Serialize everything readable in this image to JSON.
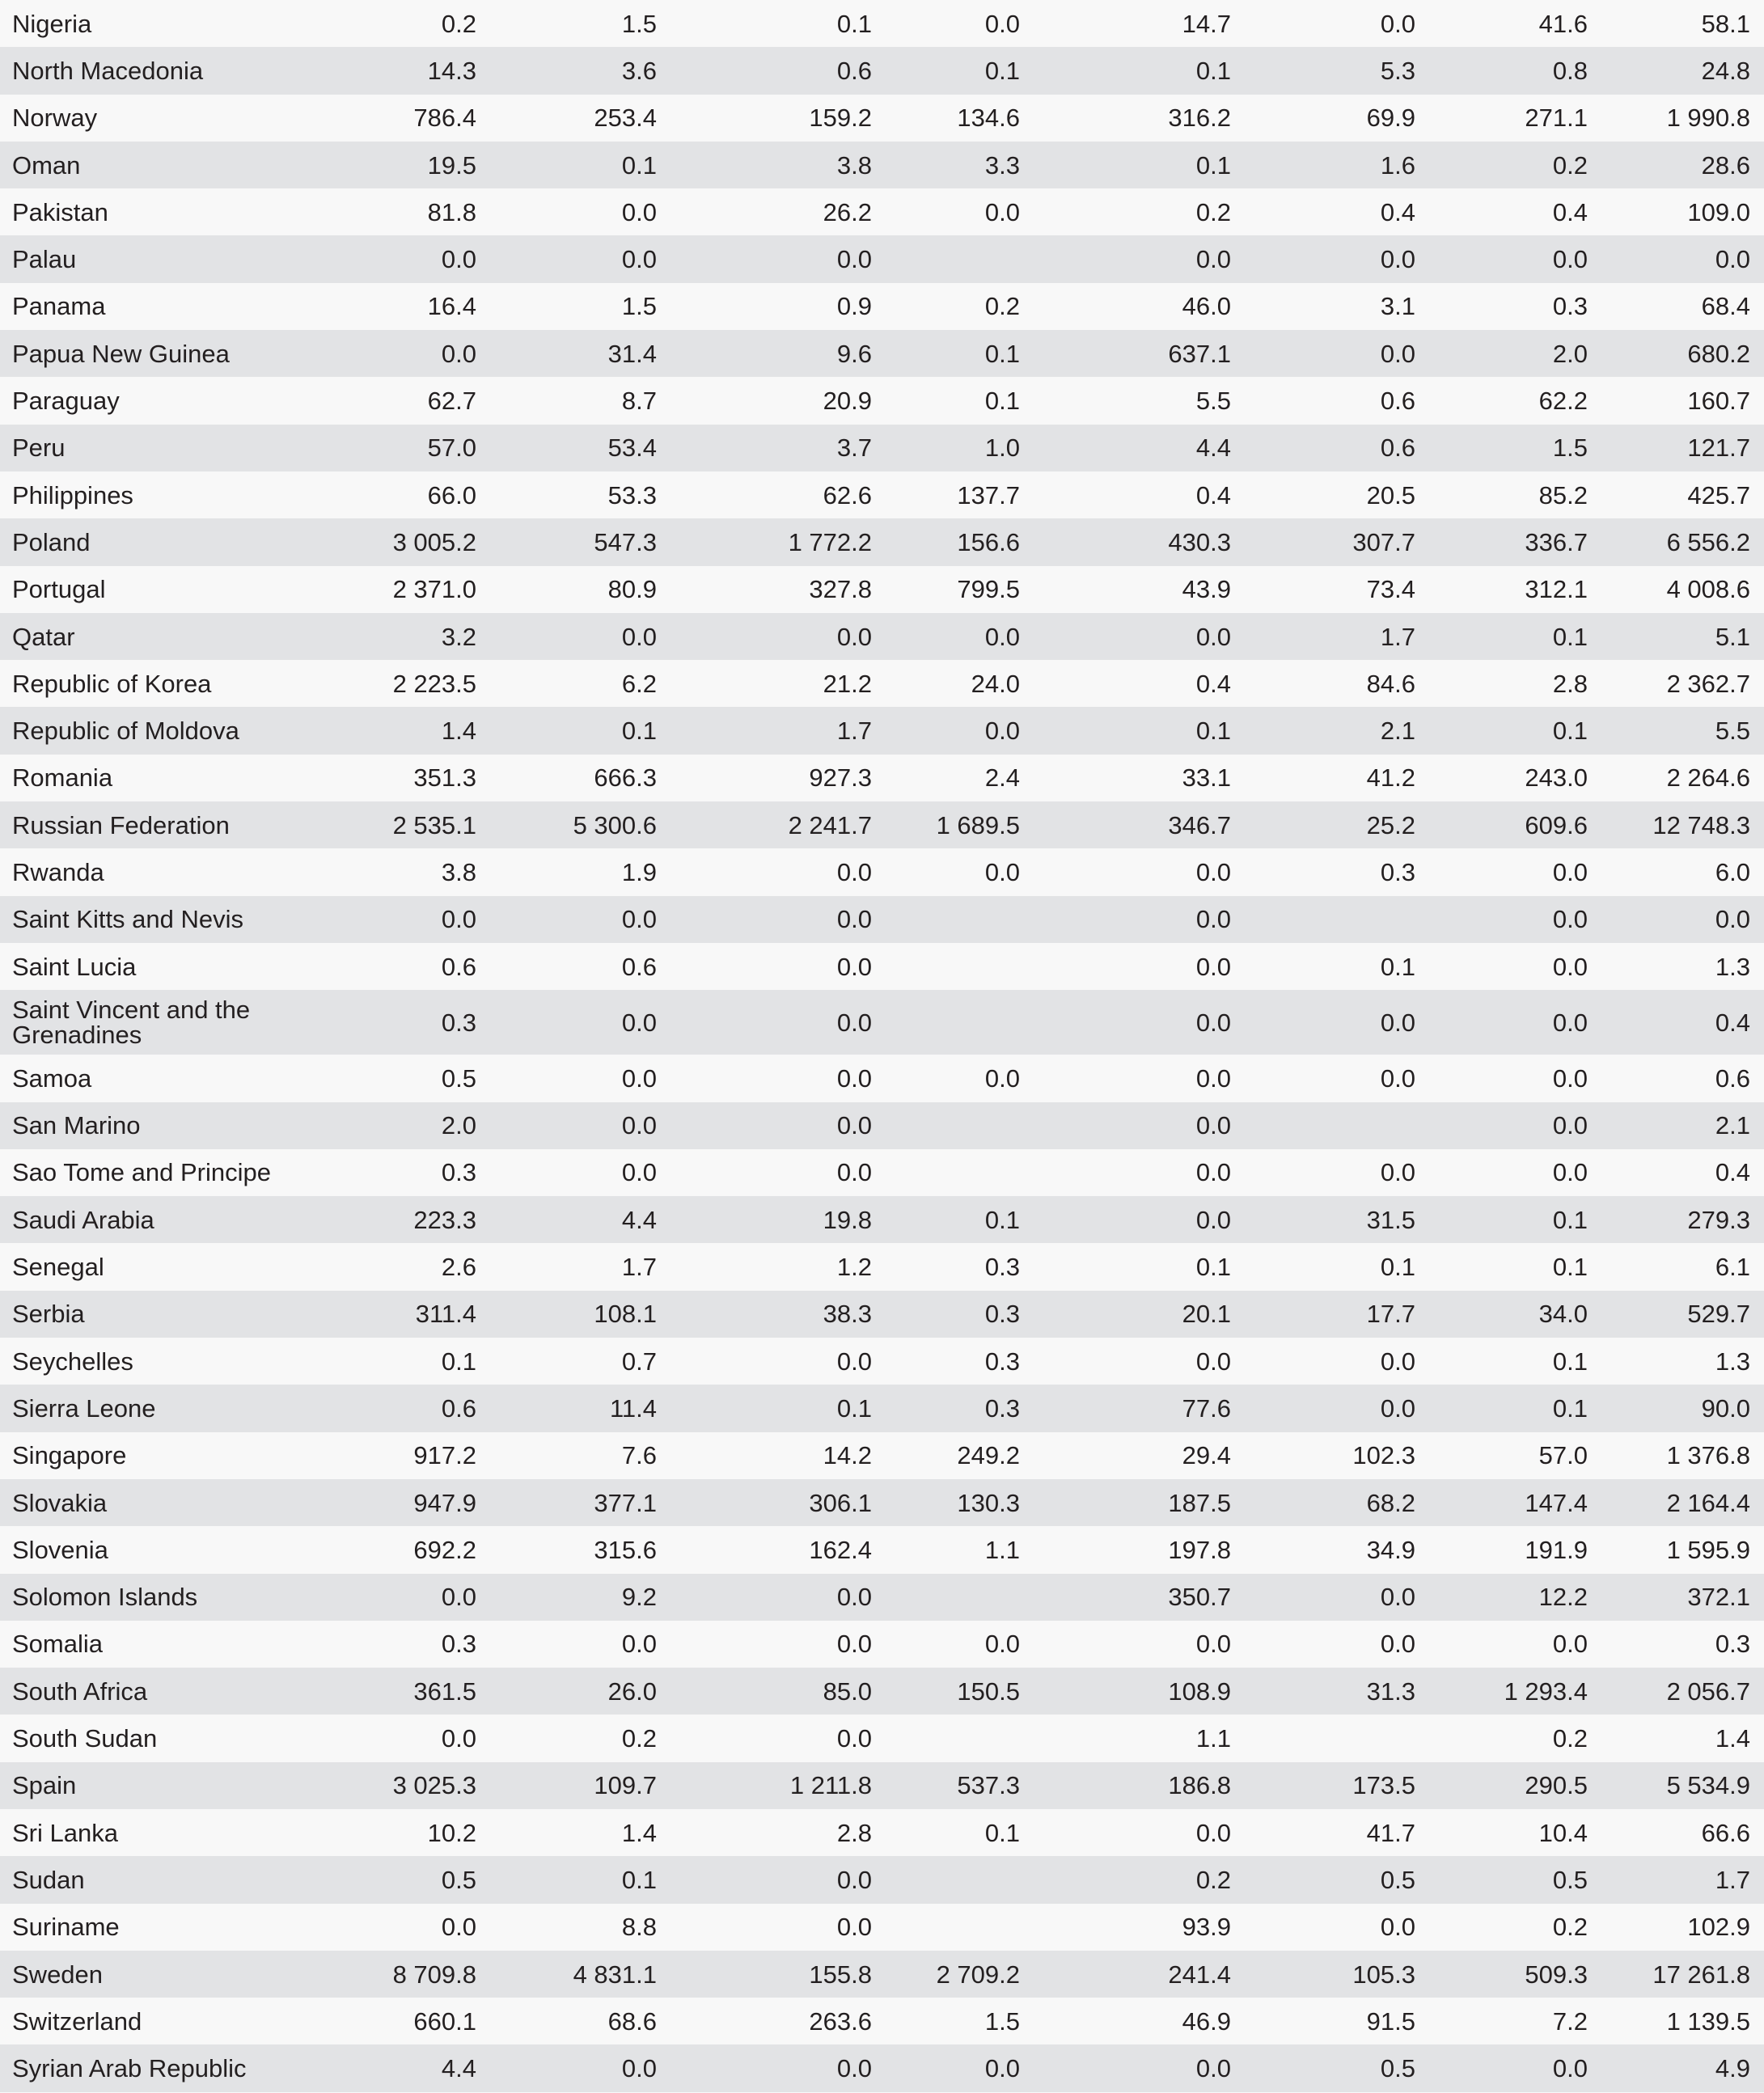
{
  "table": {
    "rows": [
      [
        "Nigeria",
        "0.2",
        "1.5",
        "0.1",
        "0.0",
        "14.7",
        "0.0",
        "41.6",
        "58.1"
      ],
      [
        "North Macedonia",
        "14.3",
        "3.6",
        "0.6",
        "0.1",
        "0.1",
        "5.3",
        "0.8",
        "24.8"
      ],
      [
        "Norway",
        "786.4",
        "253.4",
        "159.2",
        "134.6",
        "316.2",
        "69.9",
        "271.1",
        "1 990.8"
      ],
      [
        "Oman",
        "19.5",
        "0.1",
        "3.8",
        "3.3",
        "0.1",
        "1.6",
        "0.2",
        "28.6"
      ],
      [
        "Pakistan",
        "81.8",
        "0.0",
        "26.2",
        "0.0",
        "0.2",
        "0.4",
        "0.4",
        "109.0"
      ],
      [
        "Palau",
        "0.0",
        "0.0",
        "0.0",
        "",
        "0.0",
        "0.0",
        "0.0",
        "0.0"
      ],
      [
        "Panama",
        "16.4",
        "1.5",
        "0.9",
        "0.2",
        "46.0",
        "3.1",
        "0.3",
        "68.4"
      ],
      [
        "Papua New Guinea",
        "0.0",
        "31.4",
        "9.6",
        "0.1",
        "637.1",
        "0.0",
        "2.0",
        "680.2"
      ],
      [
        "Paraguay",
        "62.7",
        "8.7",
        "20.9",
        "0.1",
        "5.5",
        "0.6",
        "62.2",
        "160.7"
      ],
      [
        "Peru",
        "57.0",
        "53.4",
        "3.7",
        "1.0",
        "4.4",
        "0.6",
        "1.5",
        "121.7"
      ],
      [
        "Philippines",
        "66.0",
        "53.3",
        "62.6",
        "137.7",
        "0.4",
        "20.5",
        "85.2",
        "425.7"
      ],
      [
        "Poland",
        "3 005.2",
        "547.3",
        "1 772.2",
        "156.6",
        "430.3",
        "307.7",
        "336.7",
        "6 556.2"
      ],
      [
        "Portugal",
        "2 371.0",
        "80.9",
        "327.8",
        "799.5",
        "43.9",
        "73.4",
        "312.1",
        "4 008.6"
      ],
      [
        "Qatar",
        "3.2",
        "0.0",
        "0.0",
        "0.0",
        "0.0",
        "1.7",
        "0.1",
        "5.1"
      ],
      [
        "Republic of Korea",
        "2 223.5",
        "6.2",
        "21.2",
        "24.0",
        "0.4",
        "84.6",
        "2.8",
        "2 362.7"
      ],
      [
        "Republic of Moldova",
        "1.4",
        "0.1",
        "1.7",
        "0.0",
        "0.1",
        "2.1",
        "0.1",
        "5.5"
      ],
      [
        "Romania",
        "351.3",
        "666.3",
        "927.3",
        "2.4",
        "33.1",
        "41.2",
        "243.0",
        "2 264.6"
      ],
      [
        "Russian Federation",
        "2 535.1",
        "5 300.6",
        "2 241.7",
        "1 689.5",
        "346.7",
        "25.2",
        "609.6",
        "12 748.3"
      ],
      [
        "Rwanda",
        "3.8",
        "1.9",
        "0.0",
        "0.0",
        "0.0",
        "0.3",
        "0.0",
        "6.0"
      ],
      [
        "Saint Kitts and Nevis",
        "0.0",
        "0.0",
        "0.0",
        "",
        "0.0",
        "",
        "0.0",
        "0.0"
      ],
      [
        "Saint Lucia",
        "0.6",
        "0.6",
        "0.0",
        "",
        "0.0",
        "0.1",
        "0.0",
        "1.3"
      ],
      [
        "Saint Vincent and the Grenadines",
        "0.3",
        "0.0",
        "0.0",
        "",
        "0.0",
        "0.0",
        "0.0",
        "0.4"
      ],
      [
        "Samoa",
        "0.5",
        "0.0",
        "0.0",
        "0.0",
        "0.0",
        "0.0",
        "0.0",
        "0.6"
      ],
      [
        "San Marino",
        "2.0",
        "0.0",
        "0.0",
        "",
        "0.0",
        "",
        "0.0",
        "2.1"
      ],
      [
        "Sao Tome and Principe",
        "0.3",
        "0.0",
        "0.0",
        "",
        "0.0",
        "0.0",
        "0.0",
        "0.4"
      ],
      [
        "Saudi Arabia",
        "223.3",
        "4.4",
        "19.8",
        "0.1",
        "0.0",
        "31.5",
        "0.1",
        "279.3"
      ],
      [
        "Senegal",
        "2.6",
        "1.7",
        "1.2",
        "0.3",
        "0.1",
        "0.1",
        "0.1",
        "6.1"
      ],
      [
        "Serbia",
        "311.4",
        "108.1",
        "38.3",
        "0.3",
        "20.1",
        "17.7",
        "34.0",
        "529.7"
      ],
      [
        "Seychelles",
        "0.1",
        "0.7",
        "0.0",
        "0.3",
        "0.0",
        "0.0",
        "0.1",
        "1.3"
      ],
      [
        "Sierra Leone",
        "0.6",
        "11.4",
        "0.1",
        "0.3",
        "77.6",
        "0.0",
        "0.1",
        "90.0"
      ],
      [
        "Singapore",
        "917.2",
        "7.6",
        "14.2",
        "249.2",
        "29.4",
        "102.3",
        "57.0",
        "1 376.8"
      ],
      [
        "Slovakia",
        "947.9",
        "377.1",
        "306.1",
        "130.3",
        "187.5",
        "68.2",
        "147.4",
        "2 164.4"
      ],
      [
        "Slovenia",
        "692.2",
        "315.6",
        "162.4",
        "1.1",
        "197.8",
        "34.9",
        "191.9",
        "1 595.9"
      ],
      [
        "Solomon Islands",
        "0.0",
        "9.2",
        "0.0",
        "",
        "350.7",
        "0.0",
        "12.2",
        "372.1"
      ],
      [
        "Somalia",
        "0.3",
        "0.0",
        "0.0",
        "0.0",
        "0.0",
        "0.0",
        "0.0",
        "0.3"
      ],
      [
        "South Africa",
        "361.5",
        "26.0",
        "85.0",
        "150.5",
        "108.9",
        "31.3",
        "1 293.4",
        "2 056.7"
      ],
      [
        "South Sudan",
        "0.0",
        "0.2",
        "0.0",
        "",
        "1.1",
        "",
        "0.2",
        "1.4"
      ],
      [
        "Spain",
        "3 025.3",
        "109.7",
        "1 211.8",
        "537.3",
        "186.8",
        "173.5",
        "290.5",
        "5 534.9"
      ],
      [
        "Sri Lanka",
        "10.2",
        "1.4",
        "2.8",
        "0.1",
        "0.0",
        "41.7",
        "10.4",
        "66.6"
      ],
      [
        "Sudan",
        "0.5",
        "0.1",
        "0.0",
        "",
        "0.2",
        "0.5",
        "0.5",
        "1.7"
      ],
      [
        "Suriname",
        "0.0",
        "8.8",
        "0.0",
        "",
        "93.9",
        "0.0",
        "0.2",
        "102.9"
      ],
      [
        "Sweden",
        "8 709.8",
        "4 831.1",
        "155.8",
        "2 709.2",
        "241.4",
        "105.3",
        "509.3",
        "17 261.8"
      ],
      [
        "Switzerland",
        "660.1",
        "68.6",
        "263.6",
        "1.5",
        "46.9",
        "91.5",
        "7.2",
        "1 139.5"
      ],
      [
        "Syrian Arab Republic",
        "4.4",
        "0.0",
        "0.0",
        "0.0",
        "0.0",
        "0.5",
        "0.0",
        "4.9"
      ]
    ]
  }
}
